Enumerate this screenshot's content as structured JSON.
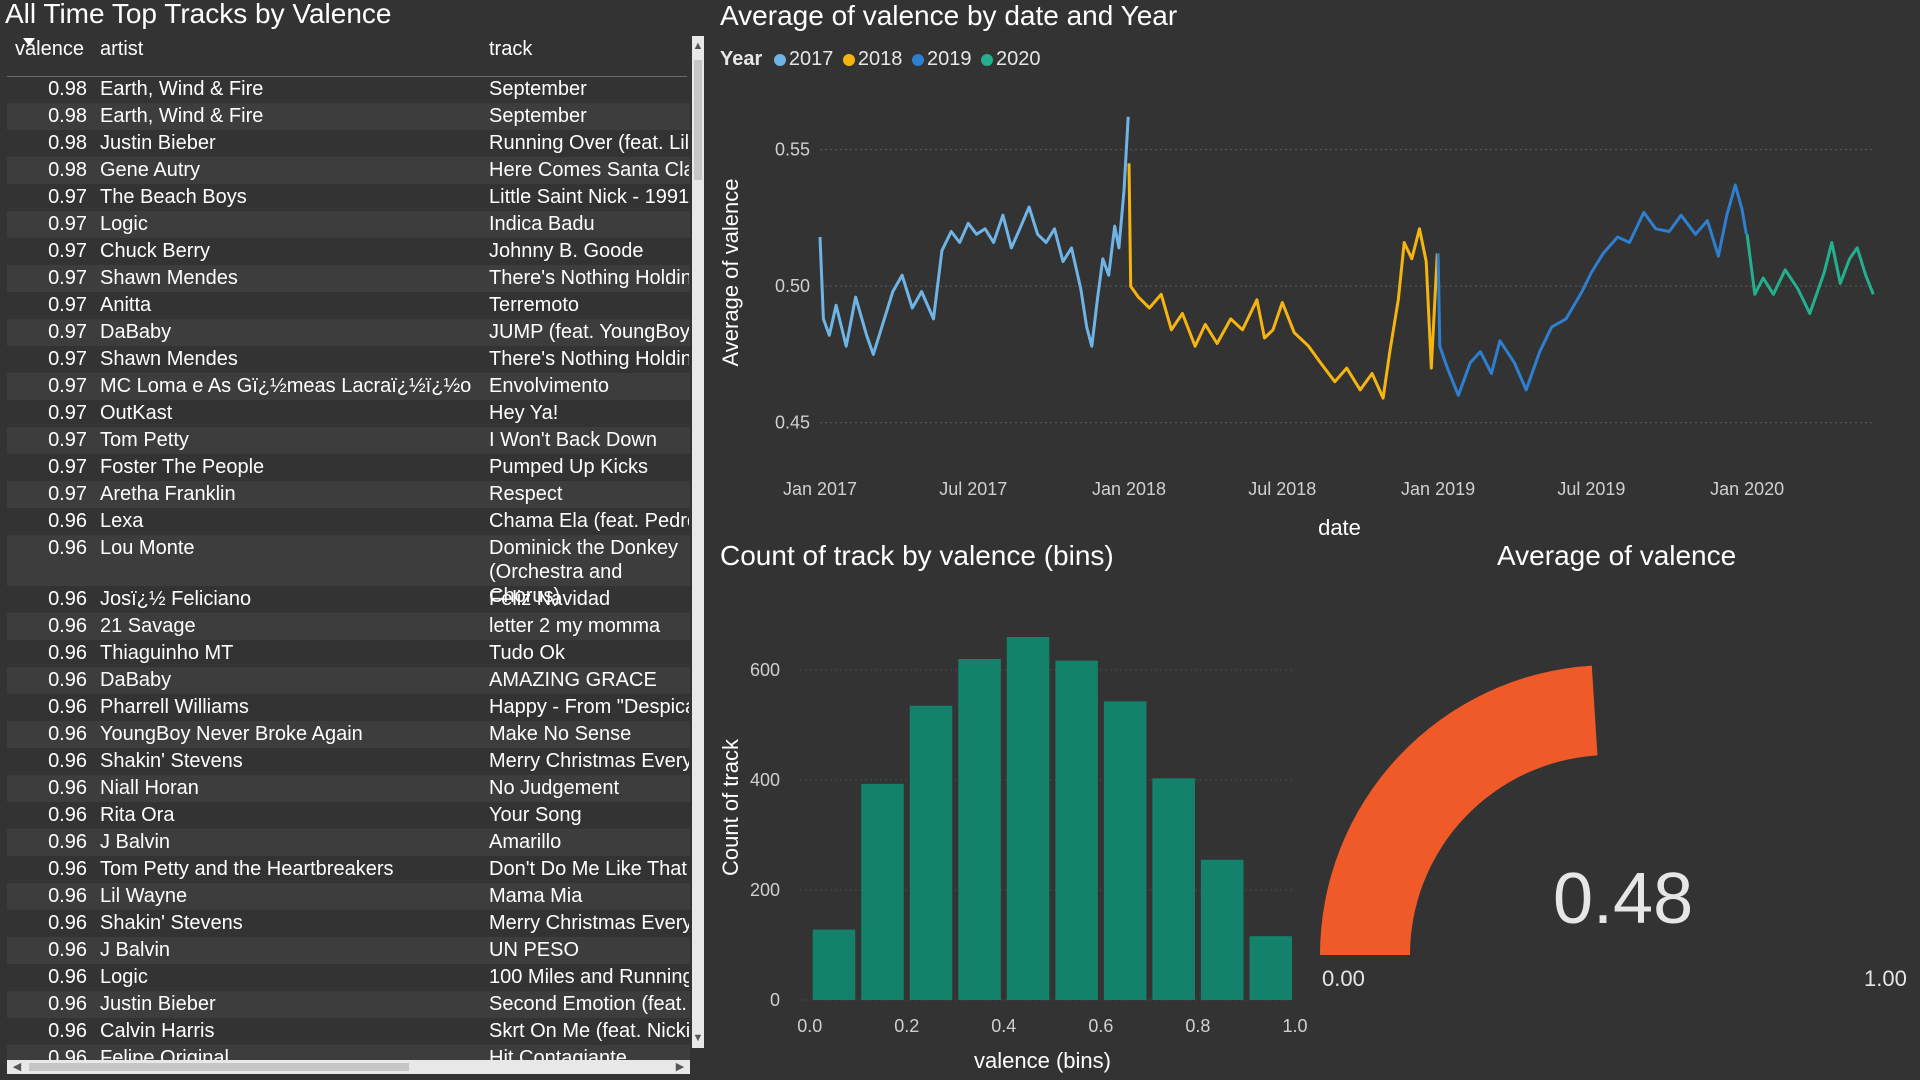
{
  "table": {
    "title": "All Time Top Tracks by Valence",
    "columns": [
      "valence",
      "artist",
      "track"
    ],
    "rows": [
      {
        "valence": "0.98",
        "artist": "Earth, Wind & Fire",
        "track": "September"
      },
      {
        "valence": "0.98",
        "artist": "Earth, Wind & Fire",
        "track": "September"
      },
      {
        "valence": "0.98",
        "artist": "Justin Bieber",
        "track": "Running Over (feat. Lil"
      },
      {
        "valence": "0.98",
        "artist": "Gene Autry",
        "track": "Here Comes Santa Cla"
      },
      {
        "valence": "0.97",
        "artist": "The Beach Boys",
        "track": "Little Saint Nick - 1991"
      },
      {
        "valence": "0.97",
        "artist": "Logic",
        "track": "Indica Badu"
      },
      {
        "valence": "0.97",
        "artist": "Chuck Berry",
        "track": "Johnny B. Goode"
      },
      {
        "valence": "0.97",
        "artist": "Shawn Mendes",
        "track": "There's Nothing Holdin"
      },
      {
        "valence": "0.97",
        "artist": "Anitta",
        "track": "Terremoto"
      },
      {
        "valence": "0.97",
        "artist": "DaBaby",
        "track": "JUMP (feat. YoungBoy"
      },
      {
        "valence": "0.97",
        "artist": "Shawn Mendes",
        "track": "There's Nothing Holdin"
      },
      {
        "valence": "0.97",
        "artist": "MC Loma e As Gï¿½meas Lacraï¿½ï¿½o",
        "track": "Envolvimento"
      },
      {
        "valence": "0.97",
        "artist": "OutKast",
        "track": "Hey Ya!"
      },
      {
        "valence": "0.97",
        "artist": "Tom Petty",
        "track": "I Won't Back Down"
      },
      {
        "valence": "0.97",
        "artist": "Foster The People",
        "track": "Pumped Up Kicks"
      },
      {
        "valence": "0.97",
        "artist": "Aretha Franklin",
        "track": "Respect"
      },
      {
        "valence": "0.96",
        "artist": "Lexa",
        "track": "Chama Ela (feat. Pedro"
      },
      {
        "valence": "0.96",
        "artist": "Lou Monte",
        "track": "Dominick the Donkey (Orchestra and Chorus)"
      },
      {
        "valence": "0.96",
        "artist": "Josï¿½ Feliciano",
        "track": "Feliz Navidad"
      },
      {
        "valence": "0.96",
        "artist": "21 Savage",
        "track": "letter 2 my momma"
      },
      {
        "valence": "0.96",
        "artist": "Thiaguinho MT",
        "track": "Tudo Ok"
      },
      {
        "valence": "0.96",
        "artist": "DaBaby",
        "track": "AMAZING GRACE"
      },
      {
        "valence": "0.96",
        "artist": "Pharrell Williams",
        "track": "Happy - From \"Despica"
      },
      {
        "valence": "0.96",
        "artist": "YoungBoy Never Broke Again",
        "track": "Make No Sense"
      },
      {
        "valence": "0.96",
        "artist": "Shakin' Stevens",
        "track": "Merry Christmas Every"
      },
      {
        "valence": "0.96",
        "artist": "Niall Horan",
        "track": "No Judgement"
      },
      {
        "valence": "0.96",
        "artist": "Rita Ora",
        "track": "Your Song"
      },
      {
        "valence": "0.96",
        "artist": "J Balvin",
        "track": "Amarillo"
      },
      {
        "valence": "0.96",
        "artist": "Tom Petty and the Heartbreakers",
        "track": "Don't Do Me Like That"
      },
      {
        "valence": "0.96",
        "artist": "Lil Wayne",
        "track": "Mama Mia"
      },
      {
        "valence": "0.96",
        "artist": "Shakin' Stevens",
        "track": "Merry Christmas Every"
      },
      {
        "valence": "0.96",
        "artist": "J Balvin",
        "track": "UN PESO"
      },
      {
        "valence": "0.96",
        "artist": "Logic",
        "track": "100 Miles and Running"
      },
      {
        "valence": "0.96",
        "artist": "Justin Bieber",
        "track": "Second Emotion (feat."
      },
      {
        "valence": "0.96",
        "artist": "Calvin Harris",
        "track": "Skrt On Me (feat. Nicki"
      },
      {
        "valence": "0.96",
        "artist": "Felipe Original",
        "track": "Hit Contagiante"
      }
    ]
  },
  "line_chart_title": "Average of valence by date and Year",
  "histogram_title": "Count of track by valence (bins)",
  "chart_data": [
    {
      "type": "line",
      "title": "Average of valence by date and Year",
      "xlabel": "date",
      "ylabel": "Average of valence",
      "legend_title": "Year",
      "ylim": [
        0.44,
        0.57
      ],
      "yticks": [
        0.45,
        0.5,
        0.55
      ],
      "ytick_labels": [
        "0.45",
        "0.50",
        "0.55"
      ],
      "xticks": [
        "2017-01-01",
        "2017-07-01",
        "2018-01-01",
        "2018-07-01",
        "2019-01-01",
        "2019-07-01",
        "2020-01-01"
      ],
      "xtick_labels": [
        "Jan 2017",
        "Jul 2017",
        "Jan 2018",
        "Jul 2018",
        "Jan 2019",
        "Jul 2019",
        "Jan 2020"
      ],
      "xlim": [
        "2017-01-01",
        "2020-05-31"
      ],
      "series": [
        {
          "name": "2017",
          "color": "#6fb4e6",
          "points": [
            [
              "2017-01-01",
              0.518
            ],
            [
              "2017-01-05",
              0.488
            ],
            [
              "2017-01-12",
              0.482
            ],
            [
              "2017-01-20",
              0.493
            ],
            [
              "2017-02-01",
              0.478
            ],
            [
              "2017-02-12",
              0.496
            ],
            [
              "2017-02-25",
              0.482
            ],
            [
              "2017-03-05",
              0.475
            ],
            [
              "2017-03-15",
              0.485
            ],
            [
              "2017-03-28",
              0.498
            ],
            [
              "2017-04-08",
              0.504
            ],
            [
              "2017-04-20",
              0.492
            ],
            [
              "2017-05-01",
              0.498
            ],
            [
              "2017-05-15",
              0.488
            ],
            [
              "2017-05-25",
              0.513
            ],
            [
              "2017-06-05",
              0.52
            ],
            [
              "2017-06-15",
              0.516
            ],
            [
              "2017-06-25",
              0.523
            ],
            [
              "2017-07-05",
              0.519
            ],
            [
              "2017-07-15",
              0.521
            ],
            [
              "2017-07-25",
              0.516
            ],
            [
              "2017-08-05",
              0.526
            ],
            [
              "2017-08-15",
              0.514
            ],
            [
              "2017-08-25",
              0.521
            ],
            [
              "2017-09-05",
              0.529
            ],
            [
              "2017-09-15",
              0.519
            ],
            [
              "2017-09-25",
              0.516
            ],
            [
              "2017-10-05",
              0.521
            ],
            [
              "2017-10-15",
              0.509
            ],
            [
              "2017-10-25",
              0.514
            ],
            [
              "2017-11-05",
              0.499
            ],
            [
              "2017-11-12",
              0.485
            ],
            [
              "2017-11-18",
              0.478
            ],
            [
              "2017-11-25",
              0.496
            ],
            [
              "2017-12-01",
              0.51
            ],
            [
              "2017-12-08",
              0.504
            ],
            [
              "2017-12-15",
              0.522
            ],
            [
              "2017-12-20",
              0.514
            ],
            [
              "2017-12-26",
              0.535
            ],
            [
              "2017-12-31",
              0.562
            ]
          ]
        },
        {
          "name": "2018",
          "color": "#f5b40f",
          "points": [
            [
              "2018-01-01",
              0.545
            ],
            [
              "2018-01-03",
              0.5
            ],
            [
              "2018-01-12",
              0.496
            ],
            [
              "2018-01-25",
              0.492
            ],
            [
              "2018-02-08",
              0.497
            ],
            [
              "2018-02-20",
              0.484
            ],
            [
              "2018-03-05",
              0.49
            ],
            [
              "2018-03-20",
              0.478
            ],
            [
              "2018-04-01",
              0.486
            ],
            [
              "2018-04-15",
              0.479
            ],
            [
              "2018-05-01",
              0.488
            ],
            [
              "2018-05-15",
              0.484
            ],
            [
              "2018-06-01",
              0.495
            ],
            [
              "2018-06-10",
              0.481
            ],
            [
              "2018-06-20",
              0.484
            ],
            [
              "2018-07-01",
              0.494
            ],
            [
              "2018-07-15",
              0.483
            ],
            [
              "2018-08-01",
              0.478
            ],
            [
              "2018-08-15",
              0.472
            ],
            [
              "2018-09-01",
              0.465
            ],
            [
              "2018-09-15",
              0.47
            ],
            [
              "2018-10-01",
              0.462
            ],
            [
              "2018-10-15",
              0.468
            ],
            [
              "2018-10-28",
              0.459
            ],
            [
              "2018-11-05",
              0.476
            ],
            [
              "2018-11-15",
              0.495
            ],
            [
              "2018-11-22",
              0.516
            ],
            [
              "2018-12-01",
              0.51
            ],
            [
              "2018-12-10",
              0.521
            ],
            [
              "2018-12-18",
              0.509
            ],
            [
              "2018-12-24",
              0.47
            ],
            [
              "2018-12-31",
              0.512
            ]
          ]
        },
        {
          "name": "2019",
          "color": "#2f7fd1",
          "points": [
            [
              "2019-01-01",
              0.512
            ],
            [
              "2019-01-03",
              0.478
            ],
            [
              "2019-01-12",
              0.47
            ],
            [
              "2019-01-25",
              0.46
            ],
            [
              "2019-02-08",
              0.472
            ],
            [
              "2019-02-20",
              0.476
            ],
            [
              "2019-03-05",
              0.468
            ],
            [
              "2019-03-15",
              0.48
            ],
            [
              "2019-04-01",
              0.472
            ],
            [
              "2019-04-15",
              0.462
            ],
            [
              "2019-05-01",
              0.476
            ],
            [
              "2019-05-15",
              0.485
            ],
            [
              "2019-06-01",
              0.488
            ],
            [
              "2019-06-20",
              0.498
            ],
            [
              "2019-07-01",
              0.505
            ],
            [
              "2019-07-15",
              0.512
            ],
            [
              "2019-08-01",
              0.518
            ],
            [
              "2019-08-15",
              0.516
            ],
            [
              "2019-09-01",
              0.527
            ],
            [
              "2019-09-15",
              0.521
            ],
            [
              "2019-10-01",
              0.52
            ],
            [
              "2019-10-15",
              0.526
            ],
            [
              "2019-11-01",
              0.519
            ],
            [
              "2019-11-15",
              0.524
            ],
            [
              "2019-11-28",
              0.511
            ],
            [
              "2019-12-08",
              0.526
            ],
            [
              "2019-12-18",
              0.537
            ],
            [
              "2019-12-26",
              0.528
            ],
            [
              "2019-12-31",
              0.519
            ]
          ]
        },
        {
          "name": "2020",
          "color": "#23b08e",
          "points": [
            [
              "2020-01-01",
              0.519
            ],
            [
              "2020-01-10",
              0.497
            ],
            [
              "2020-01-20",
              0.503
            ],
            [
              "2020-02-01",
              0.497
            ],
            [
              "2020-02-15",
              0.506
            ],
            [
              "2020-03-01",
              0.499
            ],
            [
              "2020-03-15",
              0.49
            ],
            [
              "2020-04-01",
              0.505
            ],
            [
              "2020-04-10",
              0.516
            ],
            [
              "2020-04-20",
              0.501
            ],
            [
              "2020-05-01",
              0.51
            ],
            [
              "2020-05-10",
              0.514
            ],
            [
              "2020-05-20",
              0.504
            ],
            [
              "2020-05-29",
              0.497
            ]
          ]
        }
      ]
    },
    {
      "type": "bar",
      "title": "Count of track by valence (bins)",
      "xlabel": "valence (bins)",
      "ylabel": "Count of track",
      "color": "#14826a",
      "bin_width": 0.1,
      "bins": [
        0.0,
        0.1,
        0.2,
        0.3,
        0.4,
        0.5,
        0.6,
        0.7,
        0.8,
        0.9
      ],
      "values": [
        128,
        393,
        535,
        620,
        660,
        617,
        543,
        403,
        255,
        116
      ],
      "xlim": [
        -0.02,
        1.0
      ],
      "ylim": [
        0,
        700
      ],
      "yticks": [
        0,
        200,
        400,
        600
      ],
      "ytick_labels": [
        "0",
        "200",
        "400",
        "600"
      ],
      "xticks": [
        0.0,
        0.2,
        0.4,
        0.6,
        0.8,
        1.0
      ],
      "xtick_labels": [
        "0.0",
        "0.2",
        "0.4",
        "0.6",
        "0.8",
        "1.0"
      ]
    }
  ],
  "gauge": {
    "title": "Average of valence",
    "value": 0.48,
    "value_label": "0.48",
    "min": 0,
    "max": 1,
    "min_label": "0.00",
    "max_label": "1.00",
    "fill_color": "#f05a28"
  }
}
